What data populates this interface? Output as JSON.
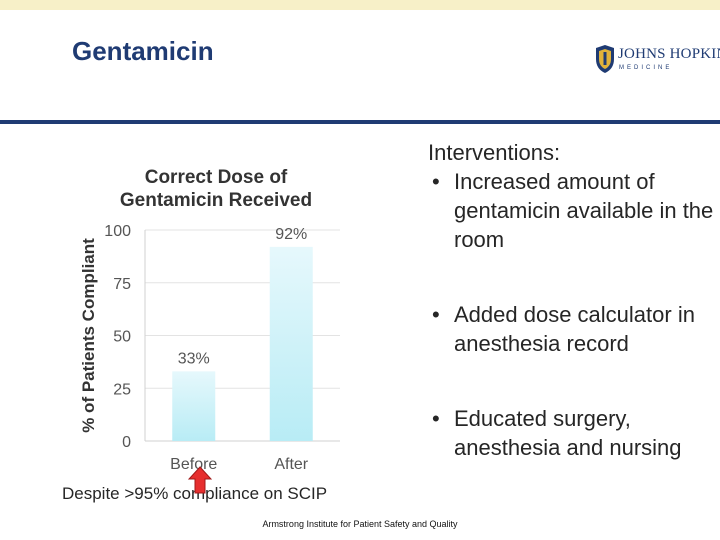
{
  "header": {
    "title": "Gentamicin",
    "logo_name": "JOHNS HOPKINS",
    "logo_sub": "MEDICINE",
    "colors": {
      "accent": "#1f3b73",
      "band": "#f7f0c8"
    }
  },
  "chart_data": {
    "type": "bar",
    "title": "Correct  Dose of Gentamicin Received",
    "categories": [
      "Before",
      "After"
    ],
    "values": [
      33,
      92
    ],
    "data_labels": [
      "33%",
      "92%"
    ],
    "xlabel": "",
    "ylabel": "% of Patients Compliant",
    "ylim": [
      0,
      100
    ],
    "yticks": [
      "0",
      "25",
      "50",
      "75",
      "100"
    ],
    "ytick_values": [
      0,
      25,
      50,
      75,
      100
    ],
    "grid": true,
    "bar_color_top": "#e6f8fc",
    "bar_color_bottom": "#b8ecf5"
  },
  "content": {
    "intro": "Interventions:",
    "bullets": [
      "Increased amount of gentamicin available in the room",
      "Added dose calculator in anesthesia record",
      "Educated surgery, anesthesia and nursing"
    ],
    "note": "Despite >95% compliance on SCIP"
  },
  "footer": {
    "text": "Armstrong Institute for Patient Safety and Quality"
  }
}
